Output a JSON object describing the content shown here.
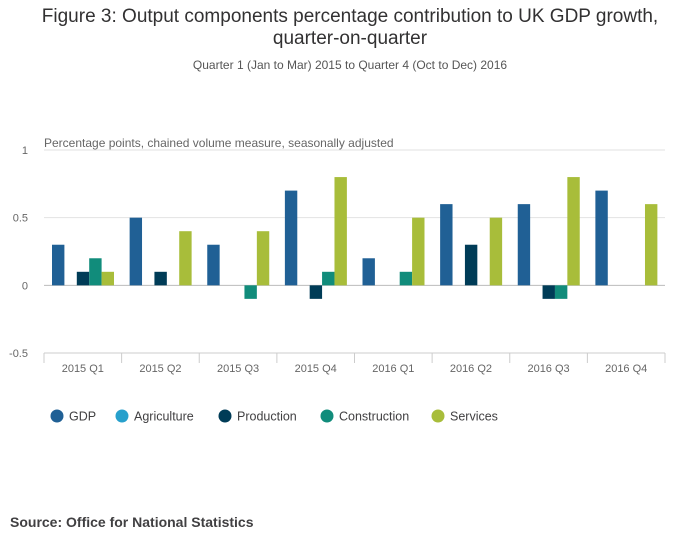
{
  "header": {
    "title_line1": "Figure 3: Output components percentage contribution to UK GDP growth,",
    "title_line2": "quarter-on-quarter",
    "subtitle": "Quarter 1 (Jan to Mar) 2015 to Quarter 4 (Oct to Dec) 2016"
  },
  "footer": {
    "source": "Source: Office for National Statistics"
  },
  "chart_data": {
    "type": "bar",
    "title": "Figure 3: Output components percentage contribution to UK GDP growth, quarter-on-quarter",
    "subtitle": "Quarter 1 (Jan to Mar) 2015 to Quarter 4 (Oct to Dec) 2016",
    "ylabel": "Percentage points, chained volume measure, seasonally adjusted",
    "xlabel": "",
    "ylim": [
      -0.5,
      1
    ],
    "yticks": [
      1,
      0.5,
      0,
      -0.5
    ],
    "ytick_labels": [
      "1",
      "0.5",
      "0",
      "-0.5"
    ],
    "grid": true,
    "legend_position": "bottom-left",
    "categories": [
      "2015 Q1",
      "2015 Q2",
      "2015 Q3",
      "2015 Q4",
      "2016 Q1",
      "2016 Q2",
      "2016 Q3",
      "2016 Q4"
    ],
    "series": [
      {
        "name": "GDP",
        "color": "#206095",
        "values": [
          0.3,
          0.5,
          0.3,
          0.7,
          0.2,
          0.6,
          0.6,
          0.7
        ]
      },
      {
        "name": "Agriculture",
        "color": "#27a0cc",
        "values": [
          0,
          0,
          0,
          0,
          0,
          0,
          0,
          0
        ]
      },
      {
        "name": "Production",
        "color": "#003c57",
        "values": [
          0.1,
          0.1,
          0,
          -0.1,
          0,
          0.3,
          -0.1,
          0
        ]
      },
      {
        "name": "Construction",
        "color": "#118c7b",
        "values": [
          0.2,
          0,
          -0.1,
          0.1,
          0.1,
          0,
          -0.1,
          0
        ]
      },
      {
        "name": "Services",
        "color": "#a8bd3a",
        "values": [
          0.1,
          0.4,
          0.4,
          0.8,
          0.5,
          0.5,
          0.8,
          0.6
        ]
      }
    ]
  }
}
